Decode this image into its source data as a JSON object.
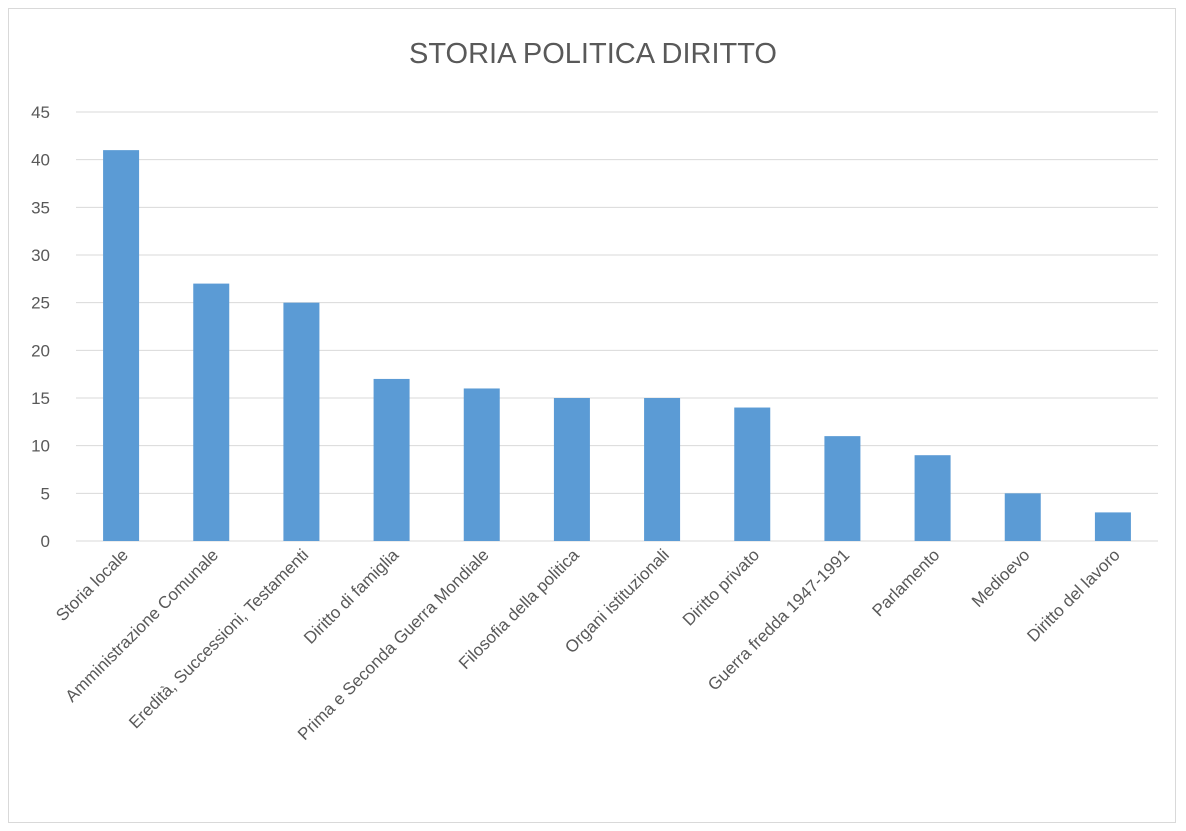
{
  "chart_data": {
    "type": "bar",
    "title": "STORIA POLITICA DIRITTO",
    "xlabel": "",
    "ylabel": "",
    "categories": [
      "Storia locale",
      "Amministrazione Comunale",
      "Eredità, Successioni, Testamenti",
      "Diritto di famiglia",
      "Prima e Seconda Guerra Mondiale",
      "Filosofia della politica",
      "Organi istituzionali",
      "Diritto privato",
      "Guerra fredda 1947-1991",
      "Parlamento",
      "Medioevo",
      "Diritto del lavoro"
    ],
    "values": [
      41,
      27,
      25,
      17,
      16,
      15,
      15,
      14,
      11,
      9,
      5,
      3
    ],
    "ylim": [
      0,
      45
    ],
    "yticks": [
      "0",
      "5",
      "10",
      "15",
      "20",
      "25",
      "30",
      "35",
      "40",
      "45"
    ],
    "grid": true,
    "legend": "none",
    "bar_color": "#5b9bd5",
    "grid_color": "#d9d9d9"
  }
}
